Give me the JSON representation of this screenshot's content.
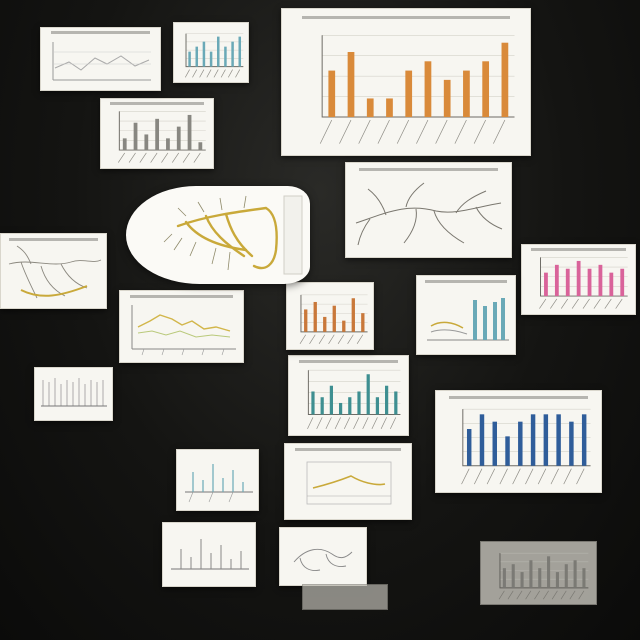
{
  "scene": {
    "background": "#141412",
    "paper": "#f7f6f1",
    "ink": "#55534e",
    "accents": {
      "orange": "#d98a3a",
      "blue": "#2f5d9a",
      "teal": "#3e8f91",
      "pink": "#d9639a",
      "gold": "#c9a93a"
    }
  },
  "chart_data": [
    {
      "type": "bar",
      "values": [
        5,
        7,
        2,
        2,
        5,
        6,
        4,
        5,
        6,
        8
      ],
      "series_color": "#d98a3a"
    },
    {
      "type": "bar",
      "values": [
        5,
        7,
        6,
        4,
        6,
        7,
        7,
        7,
        6,
        7
      ],
      "series_color": "#2f5d9a"
    },
    {
      "type": "bar",
      "values": [
        4,
        3,
        5,
        2,
        3,
        4,
        7,
        3,
        5,
        4
      ],
      "series_color": "#3e8f91"
    },
    {
      "type": "bar",
      "values": [
        3,
        7,
        4,
        8,
        3,
        6,
        9,
        2
      ],
      "series_color": "#888781"
    },
    {
      "type": "bar",
      "values": [
        6,
        8,
        7,
        9,
        7,
        8,
        6,
        7
      ],
      "series_color": "#d9639a"
    },
    {
      "type": "bar",
      "values": [
        3,
        4,
        5,
        3,
        6,
        4,
        5,
        6
      ],
      "series_color": "#6aa9b7"
    },
    {
      "type": "bar",
      "values": [
        6,
        8,
        4,
        7,
        3,
        9,
        5
      ],
      "series_color": "#c9783a"
    },
    {
      "type": "bar",
      "values": [
        5,
        6,
        4,
        7,
        5,
        8,
        4,
        6,
        7,
        5
      ],
      "series_color": "#8e8d87"
    }
  ]
}
